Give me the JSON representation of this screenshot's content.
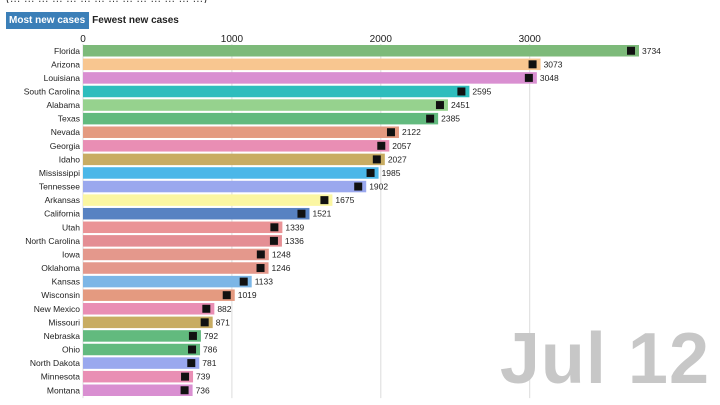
{
  "caption": "(… … … … … … … … … … … … … …)",
  "tabs": [
    {
      "label": "Most new cases",
      "active": true
    },
    {
      "label": "Fewest new cases",
      "active": false
    }
  ],
  "date_label": "Jul 12",
  "chart_data": {
    "type": "bar",
    "orientation": "horizontal",
    "xlim": [
      0,
      3734
    ],
    "xticks": [
      0,
      1000,
      2000,
      3000
    ],
    "grid": true,
    "categories": [
      "Florida",
      "Arizona",
      "Louisiana",
      "South Carolina",
      "Alabama",
      "Texas",
      "Nevada",
      "Georgia",
      "Idaho",
      "Mississippi",
      "Tennessee",
      "Arkansas",
      "California",
      "Utah",
      "North Carolina",
      "Iowa",
      "Oklahoma",
      "Kansas",
      "Wisconsin",
      "New Mexico",
      "Missouri",
      "Nebraska",
      "Ohio",
      "North Dakota",
      "Minnesota",
      "Montana"
    ],
    "values": [
      3734,
      3073,
      3048,
      2595,
      2451,
      2385,
      2122,
      2057,
      2027,
      1985,
      1902,
      1675,
      1521,
      1339,
      1336,
      1248,
      1246,
      1133,
      1019,
      882,
      871,
      792,
      786,
      781,
      739,
      736
    ],
    "colors": [
      "#7dba7a",
      "#f8c690",
      "#d98fd1",
      "#2fbdbd",
      "#96d28e",
      "#62ba7e",
      "#e49a80",
      "#e98eb4",
      "#c8ac62",
      "#4bb7e8",
      "#9aa8ee",
      "#fbf6a2",
      "#5882c2",
      "#ea9396",
      "#e48e94",
      "#e4988c",
      "#e4988c",
      "#7cb6e6",
      "#e49a80",
      "#e98eb4",
      "#c8ac62",
      "#62ba7e",
      "#62ba7e",
      "#9aa8ee",
      "#e98eb4",
      "#d98fd1"
    ]
  }
}
